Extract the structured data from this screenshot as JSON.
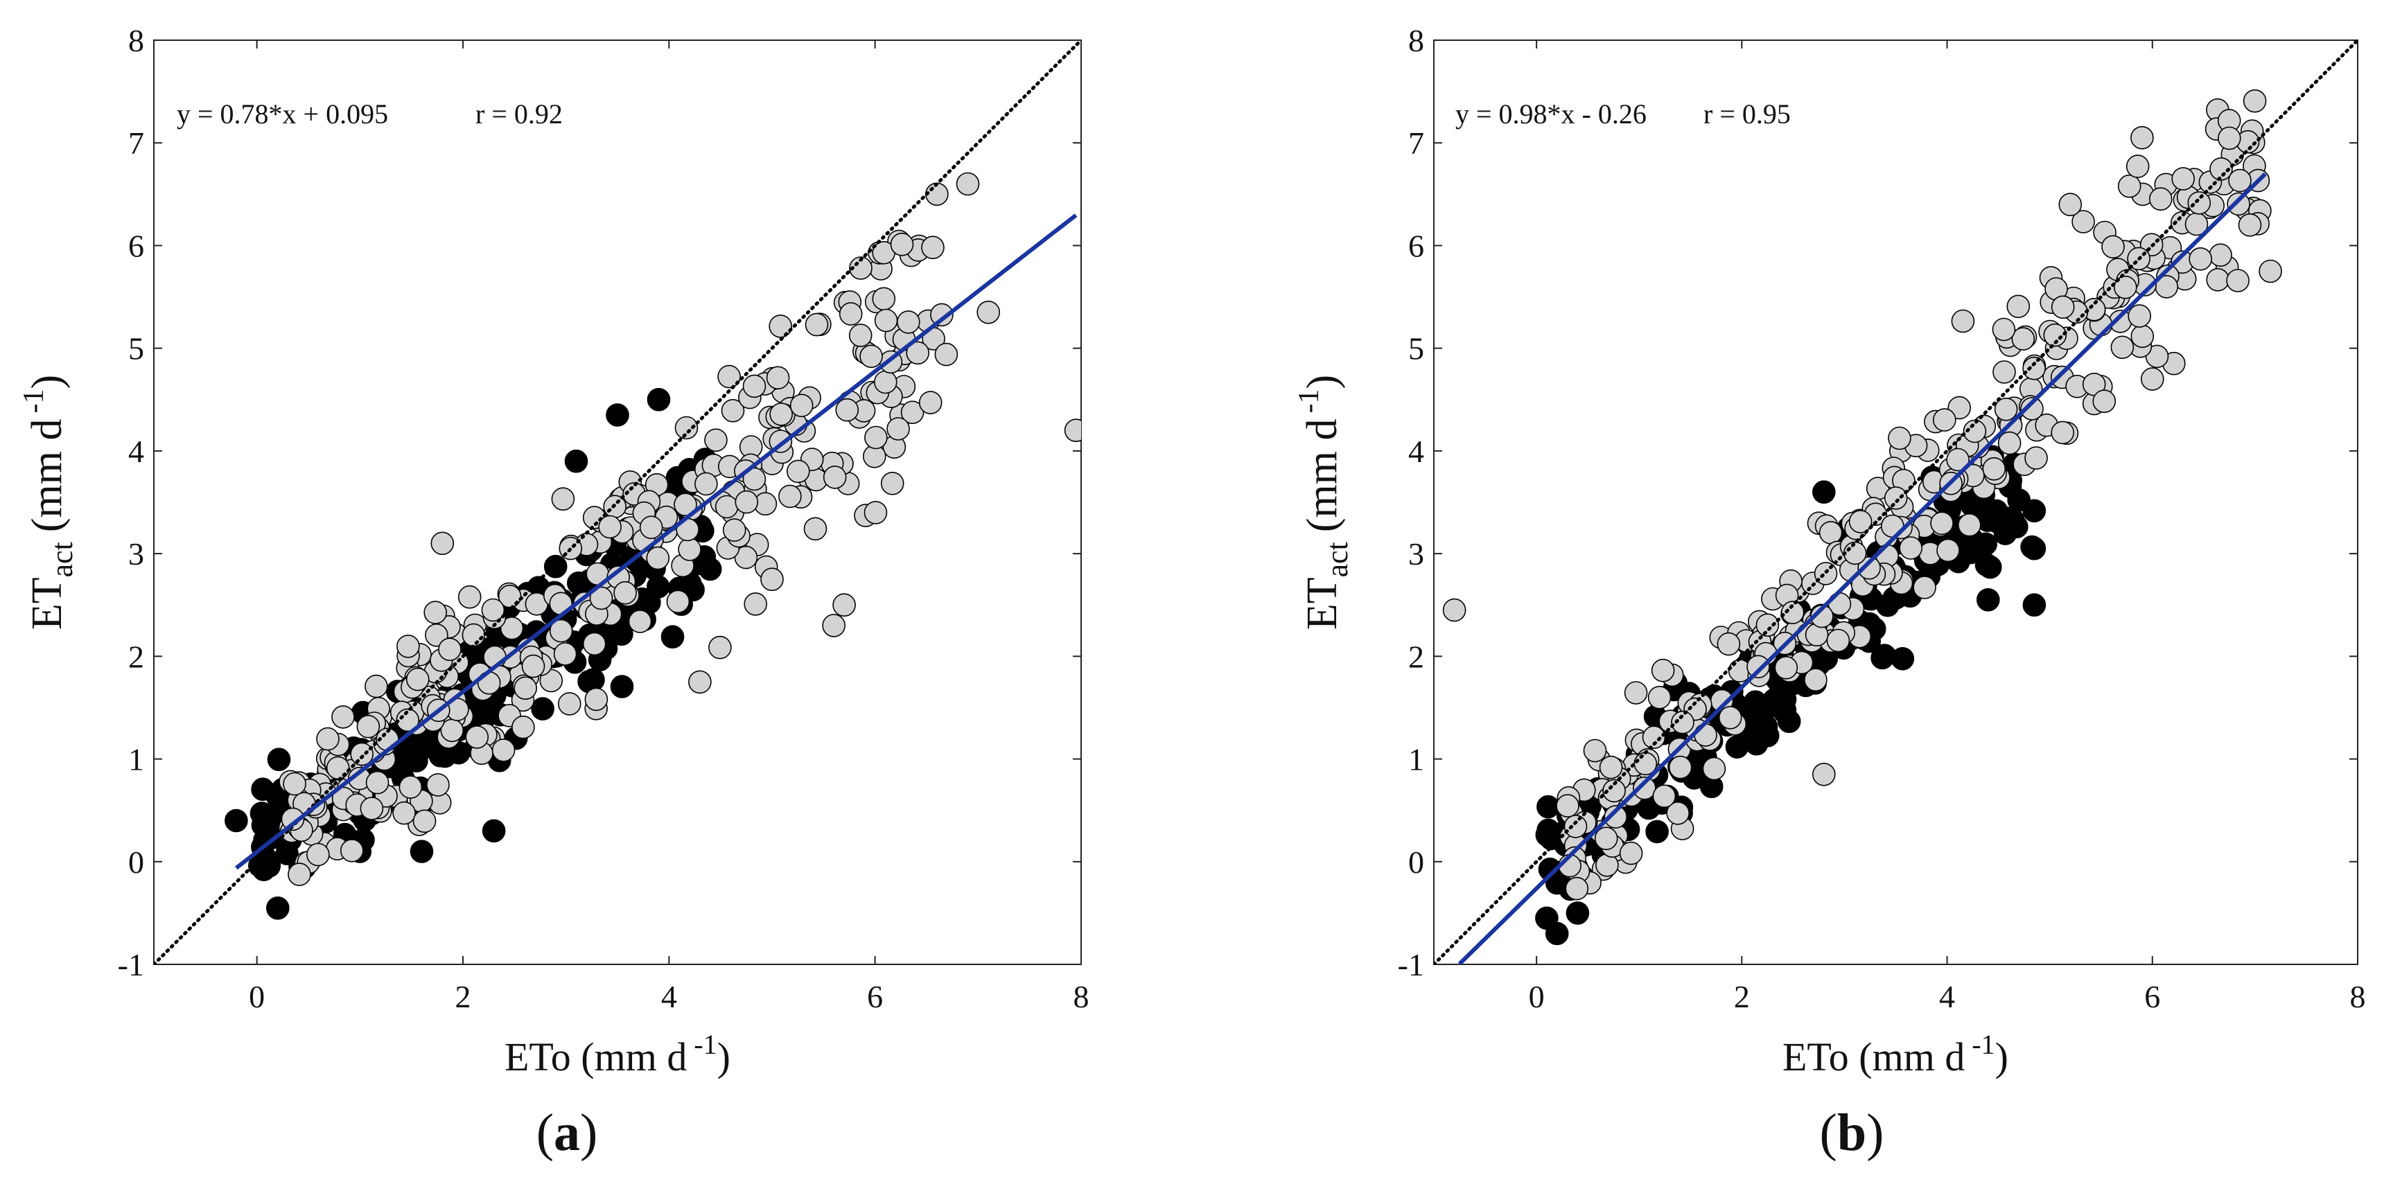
{
  "chart_data": [
    {
      "panel_label": "a",
      "type": "scatter",
      "xlabel": "ETo (mm d",
      "xlabel_sup": "-1",
      "xlabel_close": ")",
      "ylabel": "ET",
      "ylabel_sub": "act",
      "ylabel_unit": "(mm d",
      "ylabel_sup": "-1",
      "ylabel_close": ")",
      "xlim": [
        -1,
        8
      ],
      "ylim": [
        -1,
        8
      ],
      "xticks": [
        0,
        2,
        4,
        6,
        8
      ],
      "yticks": [
        -1,
        0,
        1,
        2,
        3,
        4,
        5,
        6,
        7,
        8
      ],
      "equation": "y = 0.78*x + 0.095",
      "r_text": "r = 0.92",
      "one_to_one": [
        [
          -1,
          -1
        ],
        [
          8,
          8
        ]
      ],
      "fit_line": {
        "slope": 0.78,
        "intercept": 0.095,
        "x_range": [
          -0.2,
          7.95
        ]
      },
      "colors": {
        "dark": "#000000",
        "light": "#d3d3d3",
        "fit": "#1a35a0",
        "ref": "#000000"
      },
      "series": [
        {
          "name": "dark",
          "seed": 11,
          "n": 230,
          "xmin": 0.0,
          "xmax": 4.4,
          "slope": 0.72,
          "intercept": 0.1,
          "noise": 0.42,
          "extra": [
            [
              -0.2,
              0.4
            ],
            [
              2.3,
              0.3
            ],
            [
              1.6,
              0.1
            ],
            [
              3.5,
              4.35
            ],
            [
              3.1,
              3.9
            ],
            [
              3.9,
              4.5
            ],
            [
              1.0,
              0.1
            ]
          ]
        },
        {
          "name": "light",
          "seed": 29,
          "n": 330,
          "xmin": 0.3,
          "xmax": 6.7,
          "slope": 0.79,
          "intercept": 0.1,
          "noise": 0.55,
          "extra": [
            [
              7.95,
              4.2
            ],
            [
              7.1,
              5.35
            ],
            [
              6.9,
              6.6
            ],
            [
              6.6,
              6.5
            ],
            [
              1.8,
              3.1
            ],
            [
              5.6,
              2.3
            ],
            [
              5.7,
              2.5
            ],
            [
              5.0,
              2.75
            ],
            [
              4.3,
              1.75
            ]
          ]
        }
      ]
    },
    {
      "panel_label": "b",
      "type": "scatter",
      "xlabel": "ETo (mm d",
      "xlabel_sup": "-1",
      "xlabel_close": ")",
      "ylabel": "ET",
      "ylabel_sub": "act",
      "ylabel_unit": "(mm d",
      "ylabel_sup": "-1",
      "ylabel_close": ")",
      "xlim": [
        -1,
        8
      ],
      "ylim": [
        -1,
        8
      ],
      "xticks": [
        0,
        2,
        4,
        6,
        8
      ],
      "yticks": [
        -1,
        0,
        1,
        2,
        3,
        4,
        5,
        6,
        7,
        8
      ],
      "equation": "y = 0.98*x - 0.26",
      "r_text": "r = 0.95",
      "one_to_one": [
        [
          -1,
          -1
        ],
        [
          8,
          8
        ]
      ],
      "fit_line": {
        "slope": 0.98,
        "intercept": -0.26,
        "x_range": [
          -0.75,
          7.1
        ]
      },
      "colors": {
        "dark": "#000000",
        "light": "#d3d3d3",
        "fit": "#1a35a0",
        "ref": "#000000"
      },
      "series": [
        {
          "name": "dark",
          "seed": 47,
          "n": 210,
          "xmin": 0.1,
          "xmax": 4.9,
          "slope": 0.8,
          "intercept": -0.05,
          "noise": 0.4,
          "extra": [
            [
              0.2,
              -0.7
            ],
            [
              0.4,
              -0.5
            ],
            [
              0.1,
              -0.55
            ],
            [
              4.85,
              2.5
            ],
            [
              4.4,
              2.55
            ],
            [
              4.85,
              3.05
            ],
            [
              2.8,
              3.6
            ]
          ]
        },
        {
          "name": "light",
          "seed": 83,
          "n": 320,
          "xmin": 0.3,
          "xmax": 7.1,
          "slope": 0.98,
          "intercept": -0.1,
          "noise": 0.5,
          "extra": [
            [
              -0.8,
              2.45
            ],
            [
              7.15,
              5.75
            ],
            [
              6.95,
              6.2
            ],
            [
              6.3,
              6.65
            ],
            [
              5.2,
              6.4
            ],
            [
              2.8,
              0.85
            ],
            [
              6.0,
              4.7
            ]
          ]
        }
      ]
    }
  ]
}
